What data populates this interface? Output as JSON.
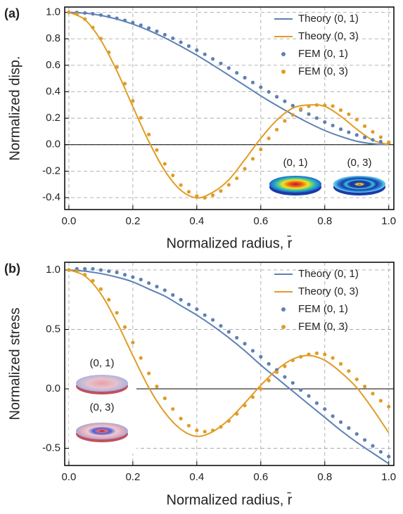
{
  "chart_data": [
    {
      "type": "line",
      "panel_label": "(a)",
      "ylabel": "Normalized disp.",
      "xlabel": "Normalized radius, r̄",
      "xlim": [
        -0.013,
        1.016
      ],
      "ylim": [
        -0.49,
        1.04
      ],
      "xticks": [
        {
          "value": 0,
          "label": "0.0"
        },
        0.2,
        0.4,
        0.6,
        0.8,
        {
          "value": 1,
          "label": "1.0"
        }
      ],
      "yticks": [
        -0.4,
        -0.2,
        {
          "value": 0,
          "label": "0.0"
        },
        0.2,
        0.4,
        0.6,
        0.8,
        {
          "value": 1,
          "label": "1.0"
        }
      ],
      "grid": true,
      "legend": "upper right",
      "annotations": [
        "(0, 1)",
        "(0, 3)"
      ],
      "series": [
        {
          "name": "Theory (0, 1)",
          "color": "#5e81b5",
          "mode": "line",
          "x": [
            0,
            0.05,
            0.1,
            0.15,
            0.2,
            0.25,
            0.3,
            0.35,
            0.4,
            0.45,
            0.5,
            0.55,
            0.6,
            0.65,
            0.7,
            0.75,
            0.8,
            0.85,
            0.9,
            0.95,
            1
          ],
          "values": [
            1,
            0.994,
            0.977,
            0.949,
            0.911,
            0.863,
            0.807,
            0.744,
            0.676,
            0.602,
            0.525,
            0.447,
            0.369,
            0.296,
            0.228,
            0.164,
            0.107,
            0.062,
            0.026,
            0.007,
            0
          ]
        },
        {
          "name": "Theory (0, 3)",
          "color": "#e19c24",
          "mode": "line",
          "x": [
            0,
            0.05,
            0.1,
            0.15,
            0.2,
            0.25,
            0.3,
            0.35,
            0.4,
            0.45,
            0.5,
            0.55,
            0.6,
            0.65,
            0.7,
            0.75,
            0.8,
            0.85,
            0.9,
            0.95,
            1
          ],
          "values": [
            1,
            0.945,
            0.789,
            0.558,
            0.288,
            0.024,
            -0.197,
            -0.344,
            -0.402,
            -0.36,
            -0.265,
            -0.113,
            0.048,
            0.185,
            0.276,
            0.3,
            0.289,
            0.215,
            0.117,
            0.034,
            0
          ]
        },
        {
          "name": "FEM (0, 1)",
          "color": "#5e81b5",
          "mode": "markers",
          "x": [
            0,
            0.025,
            0.05,
            0.075,
            0.1,
            0.125,
            0.15,
            0.175,
            0.2,
            0.225,
            0.25,
            0.275,
            0.3,
            0.325,
            0.35,
            0.375,
            0.4,
            0.425,
            0.45,
            0.475,
            0.5,
            0.525,
            0.55,
            0.575,
            0.6,
            0.625,
            0.65,
            0.675,
            0.7,
            0.725,
            0.75,
            0.775,
            0.8,
            0.825,
            0.85,
            0.875,
            0.9,
            0.925,
            0.95,
            0.975,
            1
          ],
          "values": [
            1,
            0.999,
            0.995,
            0.989,
            0.98,
            0.97,
            0.955,
            0.939,
            0.922,
            0.903,
            0.881,
            0.857,
            0.831,
            0.804,
            0.774,
            0.745,
            0.714,
            0.683,
            0.648,
            0.614,
            0.579,
            0.543,
            0.506,
            0.47,
            0.434,
            0.399,
            0.362,
            0.328,
            0.295,
            0.263,
            0.231,
            0.201,
            0.171,
            0.145,
            0.117,
            0.094,
            0.073,
            0.055,
            0.037,
            0.023,
            0.015
          ]
        },
        {
          "name": "FEM (0, 3)",
          "color": "#e19c24",
          "mode": "markers",
          "x": [
            0,
            0.025,
            0.05,
            0.075,
            0.1,
            0.125,
            0.15,
            0.175,
            0.2,
            0.225,
            0.25,
            0.275,
            0.3,
            0.325,
            0.35,
            0.375,
            0.4,
            0.425,
            0.45,
            0.475,
            0.5,
            0.525,
            0.55,
            0.575,
            0.6,
            0.625,
            0.65,
            0.675,
            0.7,
            0.725,
            0.75,
            0.775,
            0.8,
            0.825,
            0.85,
            0.875,
            0.9,
            0.925,
            0.95,
            0.975,
            1
          ],
          "values": [
            1,
            0.987,
            0.949,
            0.885,
            0.802,
            0.698,
            0.586,
            0.461,
            0.331,
            0.203,
            0.077,
            -0.04,
            -0.145,
            -0.232,
            -0.305,
            -0.356,
            -0.388,
            -0.401,
            -0.382,
            -0.35,
            -0.303,
            -0.254,
            -0.182,
            -0.107,
            -0.036,
            0.048,
            0.114,
            0.18,
            0.225,
            0.27,
            0.29,
            0.3,
            0.298,
            0.292,
            0.261,
            0.23,
            0.19,
            0.14,
            0.097,
            0.057,
            0.018
          ]
        }
      ]
    },
    {
      "type": "line",
      "panel_label": "(b)",
      "ylabel": "Normalized stress",
      "xlabel": "Normalized radius, r̄",
      "xlim": [
        -0.013,
        1.016
      ],
      "ylim": [
        -0.645,
        1.065
      ],
      "xticks": [
        {
          "value": 0,
          "label": "0.0"
        },
        0.2,
        0.4,
        0.6,
        0.8,
        {
          "value": 1,
          "label": "1.0"
        }
      ],
      "yticks": [
        -0.5,
        {
          "value": 0,
          "label": "0.0"
        },
        0.5,
        {
          "value": 1,
          "label": "1.0"
        }
      ],
      "grid": true,
      "legend": "upper right",
      "annotations": [
        "(0, 1)",
        "(0, 3)"
      ],
      "series": [
        {
          "name": "Theory (0, 1)",
          "color": "#5e81b5",
          "mode": "line",
          "x": [
            0,
            0.05,
            0.1,
            0.15,
            0.2,
            0.25,
            0.3,
            0.35,
            0.4,
            0.45,
            0.5,
            0.55,
            0.6,
            0.65,
            0.7,
            0.75,
            0.8,
            0.85,
            0.9,
            0.95,
            1
          ],
          "values": [
            1,
            0.99,
            0.97,
            0.94,
            0.9,
            0.84,
            0.78,
            0.7,
            0.62,
            0.53,
            0.43,
            0.32,
            0.2,
            0.09,
            -0.02,
            -0.13,
            -0.24,
            -0.35,
            -0.45,
            -0.54,
            -0.63
          ]
        },
        {
          "name": "Theory (0, 3)",
          "color": "#e19c24",
          "mode": "line",
          "x": [
            0,
            0.05,
            0.1,
            0.15,
            0.2,
            0.25,
            0.3,
            0.35,
            0.4,
            0.45,
            0.5,
            0.55,
            0.6,
            0.65,
            0.7,
            0.75,
            0.8,
            0.85,
            0.9,
            0.95,
            1
          ],
          "values": [
            1,
            0.95,
            0.8,
            0.56,
            0.28,
            0.01,
            -0.2,
            -0.34,
            -0.4,
            -0.36,
            -0.26,
            -0.12,
            0.03,
            0.16,
            0.25,
            0.28,
            0.24,
            0.14,
            0.01,
            -0.17,
            -0.37
          ]
        },
        {
          "name": "FEM (0, 1)",
          "color": "#5e81b5",
          "mode": "markers",
          "x": [
            0,
            0.025,
            0.05,
            0.075,
            0.1,
            0.125,
            0.15,
            0.175,
            0.2,
            0.225,
            0.25,
            0.275,
            0.3,
            0.325,
            0.35,
            0.375,
            0.4,
            0.425,
            0.45,
            0.475,
            0.5,
            0.525,
            0.55,
            0.575,
            0.6,
            0.625,
            0.65,
            0.675,
            0.7,
            0.725,
            0.75,
            0.775,
            0.8,
            0.825,
            0.85,
            0.875,
            0.9,
            0.925,
            0.95,
            0.975,
            1
          ],
          "values": [
            1,
            1.01,
            1.01,
            1.01,
            1,
            0.99,
            0.98,
            0.96,
            0.94,
            0.92,
            0.89,
            0.86,
            0.83,
            0.79,
            0.75,
            0.71,
            0.67,
            0.62,
            0.58,
            0.53,
            0.48,
            0.43,
            0.38,
            0.32,
            0.27,
            0.21,
            0.16,
            0.1,
            0.05,
            -0.01,
            -0.06,
            -0.12,
            -0.17,
            -0.23,
            -0.28,
            -0.33,
            -0.38,
            -0.43,
            -0.48,
            -0.53,
            -0.57
          ]
        },
        {
          "name": "FEM (0, 3)",
          "color": "#e19c24",
          "mode": "markers",
          "x": [
            0,
            0.025,
            0.05,
            0.075,
            0.1,
            0.125,
            0.15,
            0.175,
            0.2,
            0.225,
            0.25,
            0.275,
            0.3,
            0.325,
            0.35,
            0.375,
            0.4,
            0.425,
            0.45,
            0.475,
            0.5,
            0.525,
            0.55,
            0.575,
            0.6,
            0.625,
            0.65,
            0.675,
            0.7,
            0.725,
            0.75,
            0.775,
            0.8,
            0.825,
            0.85,
            0.875,
            0.9,
            0.925,
            0.95,
            0.975,
            1
          ],
          "values": [
            1,
            0.99,
            0.96,
            0.91,
            0.84,
            0.75,
            0.64,
            0.52,
            0.39,
            0.26,
            0.13,
            0.02,
            -0.08,
            -0.17,
            -0.25,
            -0.31,
            -0.35,
            -0.36,
            -0.35,
            -0.32,
            -0.27,
            -0.21,
            -0.14,
            -0.07,
            0,
            0.07,
            0.14,
            0.19,
            0.24,
            0.27,
            0.29,
            0.3,
            0.29,
            0.26,
            0.21,
            0.15,
            0.08,
            0.02,
            -0.04,
            -0.1,
            -0.15
          ]
        }
      ]
    }
  ]
}
